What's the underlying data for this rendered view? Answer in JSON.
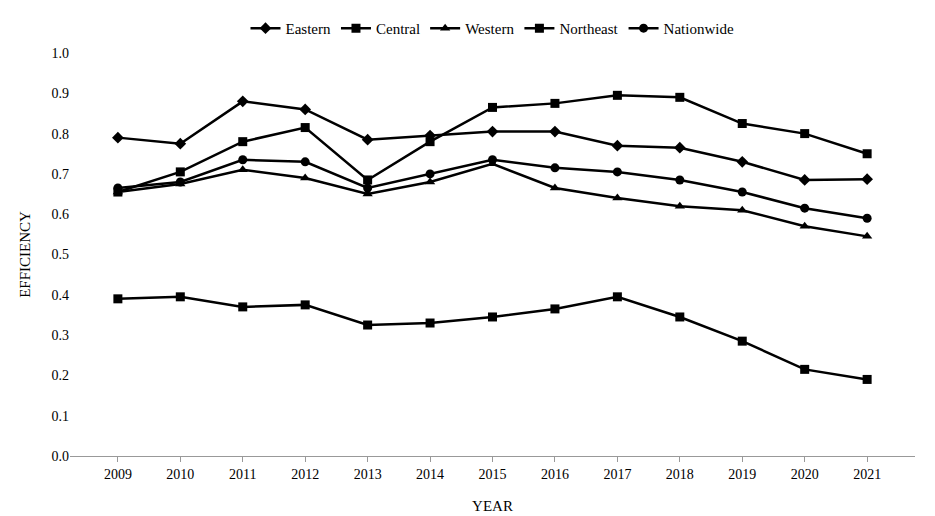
{
  "chart_data": {
    "type": "line",
    "x_label": "YEAR",
    "y_label": "EFFICIENCY",
    "categories": [
      "2009",
      "2010",
      "2011",
      "2012",
      "2013",
      "2014",
      "2015",
      "2016",
      "2017",
      "2018",
      "2019",
      "2020",
      "2021"
    ],
    "series": [
      {
        "name": "Eastern",
        "color": "#000000",
        "marker": "diamond",
        "values": [
          0.79,
          0.775,
          0.88,
          0.86,
          0.785,
          0.795,
          0.805,
          0.805,
          0.77,
          0.765,
          0.73,
          0.685,
          0.687
        ]
      },
      {
        "name": "Central",
        "color": "#000000",
        "marker": "square",
        "values": [
          0.655,
          0.705,
          0.78,
          0.815,
          0.685,
          0.78,
          0.865,
          0.875,
          0.895,
          0.89,
          0.825,
          0.8,
          0.75
        ]
      },
      {
        "name": "Western",
        "color": "#000000",
        "marker": "triangle",
        "values": [
          0.655,
          0.675,
          0.71,
          0.69,
          0.65,
          0.68,
          0.725,
          0.665,
          0.64,
          0.62,
          0.61,
          0.57,
          0.545
        ]
      },
      {
        "name": "Northeast",
        "color": "#000000",
        "marker": "square",
        "values": [
          0.39,
          0.395,
          0.37,
          0.375,
          0.325,
          0.33,
          0.345,
          0.365,
          0.395,
          0.345,
          0.285,
          0.215,
          0.19
        ]
      },
      {
        "name": "Nationwide",
        "color": "#000000",
        "marker": "circle",
        "values": [
          0.665,
          0.68,
          0.735,
          0.73,
          0.665,
          0.7,
          0.735,
          0.715,
          0.705,
          0.685,
          0.655,
          0.615,
          0.59
        ]
      }
    ],
    "ylim": [
      0,
      1
    ],
    "yticks": [
      {
        "value": 0,
        "label": "0.0"
      },
      0.1,
      0.2,
      0.3,
      0.4,
      0.5,
      0.6,
      0.7,
      0.8,
      0.9,
      {
        "value": 1,
        "label": "1.0"
      }
    ],
    "grid": false,
    "legend": "top"
  }
}
